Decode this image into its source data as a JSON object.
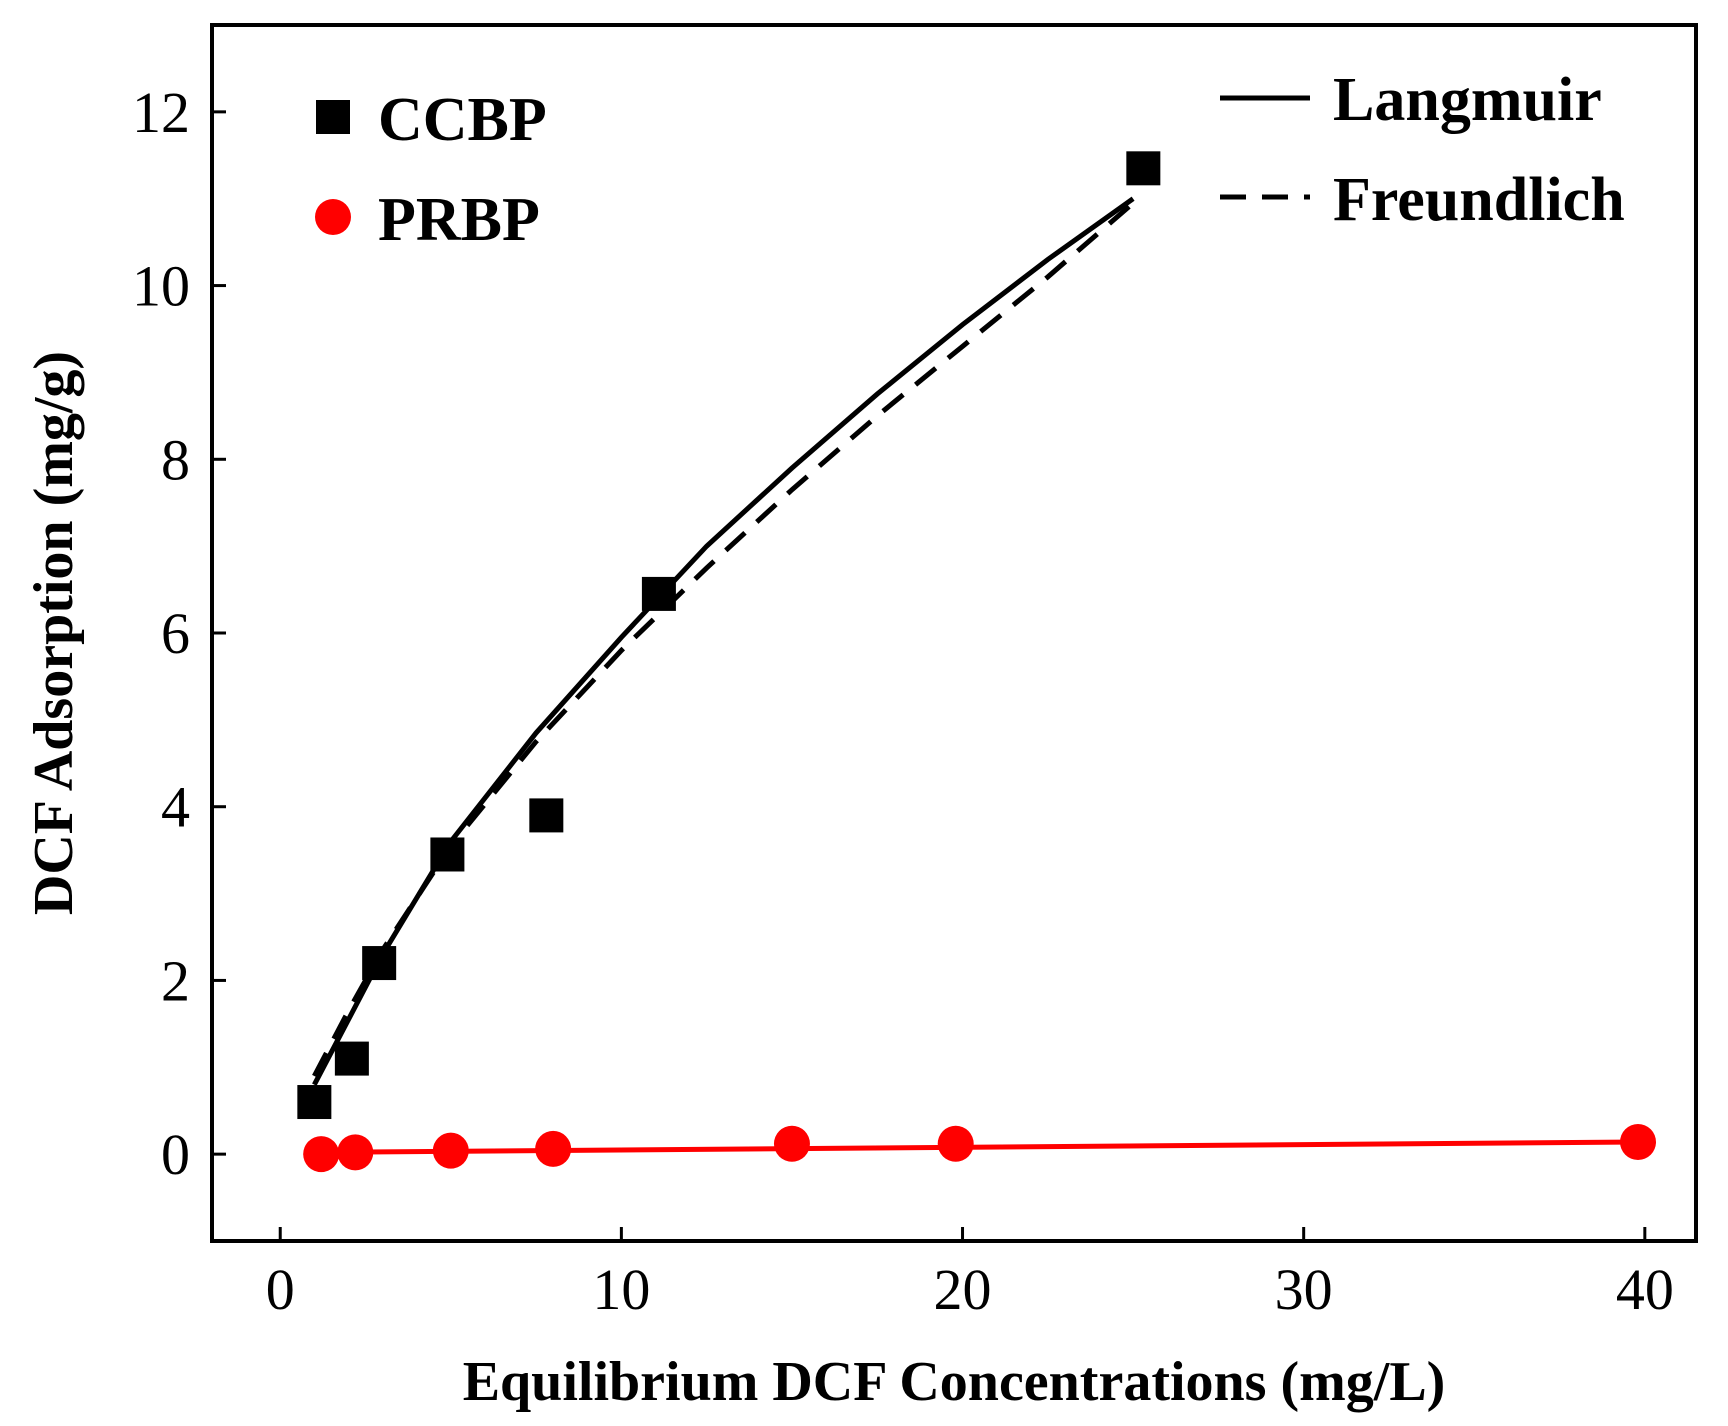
{
  "chart_data": {
    "type": "scatter",
    "title": "",
    "xlabel": "Equilibrium DCF Concentrations (mg/L)",
    "ylabel": "DCF Adsorption (mg/g)",
    "xlim": [
      -2,
      41.5
    ],
    "ylim": [
      -1,
      13
    ],
    "xticks": [
      0,
      10,
      20,
      30,
      40
    ],
    "yticks": [
      0,
      2,
      4,
      6,
      8,
      10,
      12
    ],
    "grid": false,
    "legend_position": "top-left",
    "fit_legend_position": "top-right",
    "series": [
      {
        "name": "CCBP",
        "marker": "square",
        "color": "#000000",
        "x": [
          1.0,
          2.1,
          2.9,
          4.9,
          7.8,
          11.1,
          25.3
        ],
        "y": [
          0.6,
          1.1,
          2.2,
          3.45,
          3.9,
          6.45,
          11.35
        ]
      },
      {
        "name": "PRBP",
        "marker": "circle",
        "color": "#ff0000",
        "x": [
          1.2,
          2.2,
          5.0,
          8.0,
          15.0,
          19.8,
          39.8
        ],
        "y": [
          0.0,
          0.02,
          0.04,
          0.06,
          0.12,
          0.12,
          0.14
        ]
      }
    ],
    "fits": [
      {
        "name": "Langmuir",
        "style": "solid",
        "color": "#000000",
        "x": [
          1.0,
          2.0,
          3.0,
          5.0,
          7.5,
          10.0,
          12.5,
          15.0,
          17.5,
          20.0,
          22.5,
          25.0
        ],
        "y": [
          0.8,
          1.55,
          2.3,
          3.6,
          4.85,
          5.95,
          7.0,
          7.9,
          8.75,
          9.55,
          10.3,
          11.0
        ]
      },
      {
        "name": "Freundlich",
        "style": "dashed",
        "color": "#000000",
        "x": [
          1.0,
          2.0,
          3.0,
          5.0,
          7.5,
          10.0,
          12.5,
          15.0,
          17.5,
          20.0,
          22.5,
          25.0
        ],
        "y": [
          0.9,
          1.65,
          2.35,
          3.55,
          4.75,
          5.8,
          6.75,
          7.65,
          8.5,
          9.3,
          10.1,
          10.95
        ]
      },
      {
        "name": "PRBP fit",
        "style": "solid",
        "color": "#ff0000",
        "legend": false,
        "x": [
          1.2,
          39.8
        ],
        "y": [
          0.02,
          0.14
        ]
      }
    ]
  }
}
